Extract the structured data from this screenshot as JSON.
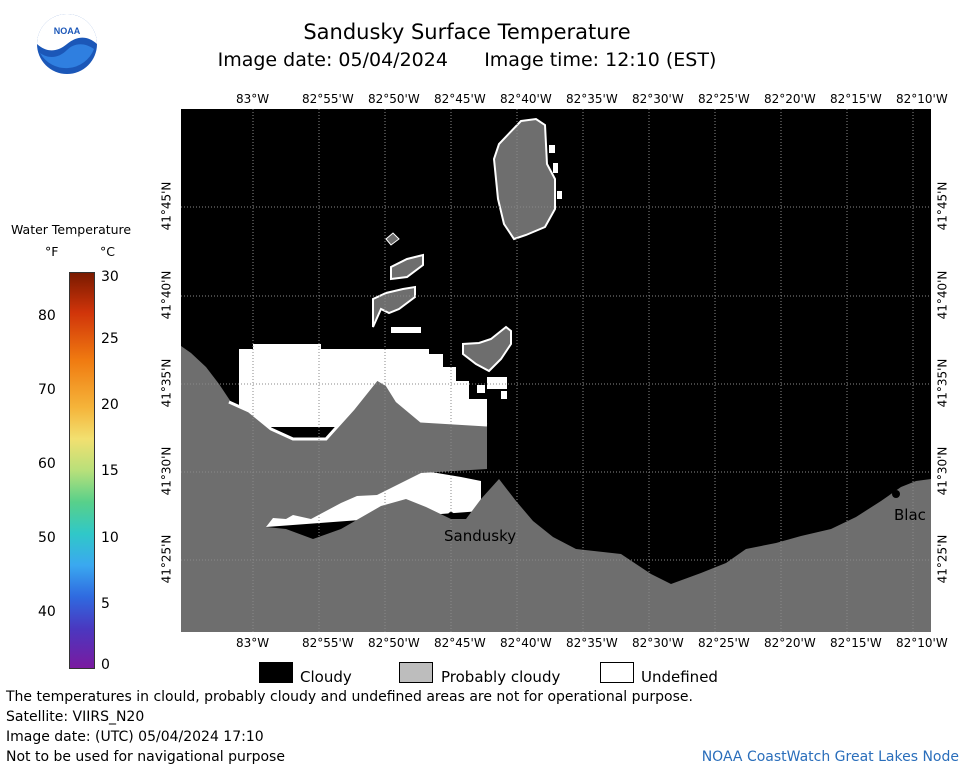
{
  "header": {
    "title": "Sandusky Surface Temperature",
    "image_date_label": "Image date: 05/04/2024",
    "image_time_label": "Image time: 12:10 (EST)",
    "logo_text": "NOAA"
  },
  "map": {
    "lon_labels": [
      "83°W",
      "82°55'W",
      "82°50'W",
      "82°45'W",
      "82°40'W",
      "82°35'W",
      "82°30'W",
      "82°25'W",
      "82°20'W",
      "82°15'W",
      "82°10'W"
    ],
    "lat_labels": [
      "41°45'N",
      "41°40'N",
      "41°35'N",
      "41°30'N",
      "41°25'N"
    ],
    "place_labels": {
      "sandusky": "Sandusky",
      "blac": "Blac"
    },
    "colors": {
      "water_cloudy": "#000000",
      "land": "#6e6e6e",
      "probably_cloudy": "#6e6e6e",
      "undefined": "#ffffff"
    }
  },
  "colorbar": {
    "title": "Water Temperature",
    "unit_f": "°F",
    "unit_c": "°C",
    "f_labels": [
      "80",
      "70",
      "60",
      "50",
      "40"
    ],
    "c_labels": [
      "30",
      "25",
      "20",
      "15",
      "10",
      "5",
      "0"
    ]
  },
  "legend": {
    "cloudy": "Cloudy",
    "probably_cloudy": "Probably cloudy",
    "undefined": "Undefined"
  },
  "footer": {
    "disclaimer": "The temperatures in clould, probably cloudy and undefined areas are not for operational purpose.",
    "satellite": "Satellite: VIIRS_N20",
    "utc_date": "Image date: (UTC) 05/04/2024  17:10",
    "nav_warning": "Not to be used for navigational purpose",
    "credit": "NOAA CoastWatch Great Lakes Node"
  }
}
